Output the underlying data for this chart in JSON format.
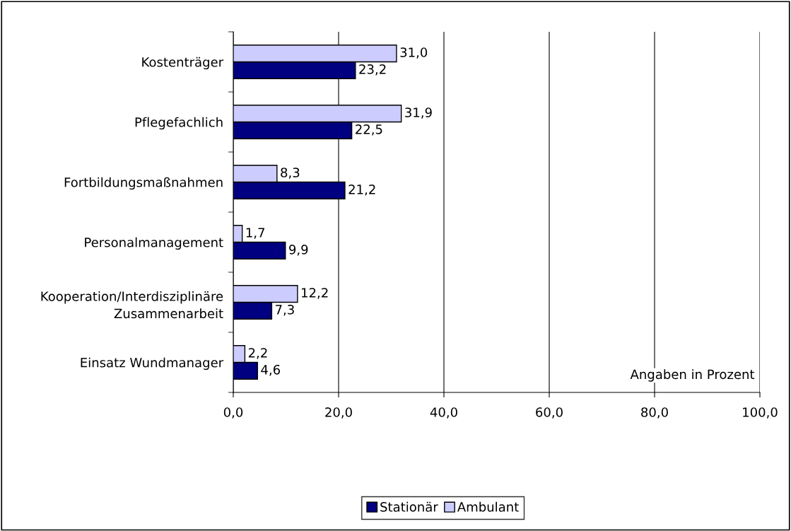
{
  "chart_data": {
    "type": "bar",
    "orientation": "horizontal",
    "categories": [
      "Kostenträger",
      "Pflegefachlich",
      "Fortbildungsmaßnahmen",
      "Personalmanagement",
      "Kooperation/Interdisziplinäre\nZusammenarbeit",
      "Einsatz Wundmanager"
    ],
    "series": [
      {
        "name": "Stationär",
        "color": "#000080",
        "values": [
          23.2,
          22.5,
          21.2,
          9.9,
          7.3,
          4.6
        ],
        "value_labels": [
          "23,2",
          "22,5",
          "21,2",
          "9,9",
          "7,3",
          "4,6"
        ]
      },
      {
        "name": "Ambulant",
        "color": "#ccccff",
        "values": [
          31.0,
          31.9,
          8.3,
          1.7,
          12.2,
          2.2
        ],
        "value_labels": [
          "31,0",
          "31,9",
          "8,3",
          "1,7",
          "12,2",
          "2,2"
        ]
      }
    ],
    "xlim": [
      0,
      100
    ],
    "xticks": [
      {
        "value": 0,
        "label": "0,0"
      },
      {
        "value": 20,
        "label": "20,0"
      },
      {
        "value": 40,
        "label": "40,0"
      },
      {
        "value": 60,
        "label": "60,0"
      },
      {
        "value": 80,
        "label": "80,0"
      },
      {
        "value": 100,
        "label": "100,0"
      }
    ],
    "grid": "x",
    "legend": "bottom",
    "annotations": [
      "Angaben in Prozent"
    ]
  }
}
